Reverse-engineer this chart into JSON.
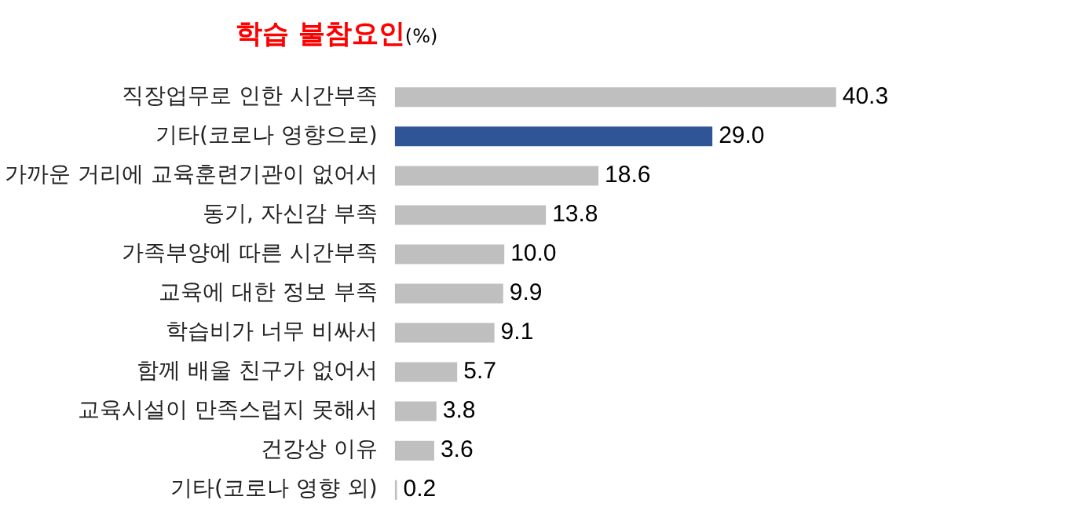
{
  "chart_data": {
    "type": "bar",
    "orientation": "horizontal",
    "title": "학습 불참요인",
    "subtitle": "(%)",
    "categories": [
      "직장업무로 인한 시간부족",
      "기타(코로나 영향으로)",
      "가까운 거리에 교육훈련기관이 없어서",
      "동기, 자신감 부족",
      "가족부양에 따른 시간부족",
      "교육에 대한 정보 부족",
      "학습비가 너무 비싸서",
      "함께 배울 친구가 없어서",
      "교육시설이 만족스럽지 못해서",
      "건강상 이유",
      "기타(코로나 영향 외)"
    ],
    "values": [
      40.3,
      29.0,
      18.6,
      13.8,
      10.0,
      9.9,
      9.1,
      5.7,
      3.8,
      3.6,
      0.2
    ],
    "value_labels": [
      "40.3",
      "29.0",
      "18.6",
      "13.8",
      "10.0",
      "9.9",
      "9.1",
      "5.7",
      "3.8",
      "3.6",
      "0.2"
    ],
    "colors": [
      "#bfbfbf",
      "#2f5597",
      "#bfbfbf",
      "#bfbfbf",
      "#bfbfbf",
      "#bfbfbf",
      "#bfbfbf",
      "#bfbfbf",
      "#bfbfbf",
      "#bfbfbf",
      "#bfbfbf"
    ],
    "legend": false
  }
}
